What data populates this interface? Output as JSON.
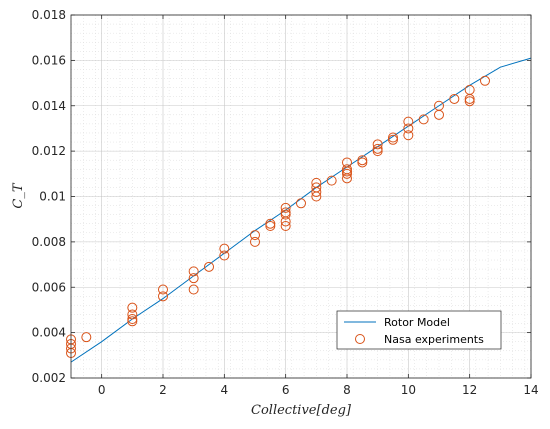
{
  "chart_data": {
    "type": "line",
    "xlabel": "Collective[deg]",
    "ylabel": "C_T",
    "xlim": [
      -1,
      14
    ],
    "ylim": [
      0.002,
      0.018
    ],
    "x_ticks": [
      0,
      2,
      4,
      6,
      8,
      10,
      12,
      14
    ],
    "x_tick_labels": [
      "0",
      "2",
      "4",
      "6",
      "8",
      "10",
      "12",
      "14"
    ],
    "y_ticks": [
      0.002,
      0.004,
      0.006,
      0.008,
      0.01,
      0.012,
      0.014,
      0.016,
      0.018
    ],
    "y_tick_labels": [
      "0.002",
      "0.004",
      "0.006",
      "0.008",
      "0.01",
      "0.012",
      "0.014",
      "0.016",
      "0.018"
    ],
    "grid": true,
    "minor_grid": true,
    "legend_position": "bottom-right",
    "series": [
      {
        "name": "Rotor Model",
        "kind": "line",
        "color": "#0072bd",
        "x": [
          -1,
          0,
          1,
          2,
          3,
          4,
          5,
          6,
          7,
          8,
          9,
          10,
          11,
          12,
          13,
          14
        ],
        "y": [
          0.0027,
          0.0036,
          0.0046,
          0.0055,
          0.0065,
          0.0075,
          0.0085,
          0.0094,
          0.0104,
          0.0113,
          0.0122,
          0.0131,
          0.014,
          0.0149,
          0.0157,
          0.0161
        ]
      },
      {
        "name": "Nasa experiments",
        "kind": "scatter",
        "color": "#d95319",
        "x": [
          -1,
          -1,
          -1,
          -1,
          -0.5,
          1,
          1,
          1,
          1,
          2,
          2,
          3,
          3,
          3,
          3.5,
          4,
          4,
          5,
          5,
          5.5,
          5.5,
          6,
          6,
          6,
          6,
          6,
          6.5,
          7,
          7,
          7,
          7,
          7.5,
          8,
          8,
          8,
          8,
          8,
          8.5,
          8.5,
          9,
          9,
          9,
          9.5,
          9.5,
          10,
          10,
          10,
          10.5,
          11,
          11,
          11.5,
          12,
          12,
          12,
          12.5
        ],
        "y": [
          0.0031,
          0.0033,
          0.0035,
          0.0037,
          0.0038,
          0.0045,
          0.0046,
          0.0048,
          0.0051,
          0.0056,
          0.0059,
          0.0059,
          0.0064,
          0.0067,
          0.0069,
          0.0074,
          0.0077,
          0.008,
          0.0083,
          0.0087,
          0.0088,
          0.0087,
          0.0089,
          0.0092,
          0.0093,
          0.0095,
          0.0097,
          0.01,
          0.0102,
          0.0104,
          0.0106,
          0.0107,
          0.0108,
          0.011,
          0.0111,
          0.0112,
          0.0115,
          0.0115,
          0.0116,
          0.012,
          0.0121,
          0.0123,
          0.0125,
          0.0126,
          0.0127,
          0.013,
          0.0133,
          0.0134,
          0.0136,
          0.014,
          0.0143,
          0.0142,
          0.0143,
          0.0147,
          0.0151
        ]
      }
    ]
  }
}
